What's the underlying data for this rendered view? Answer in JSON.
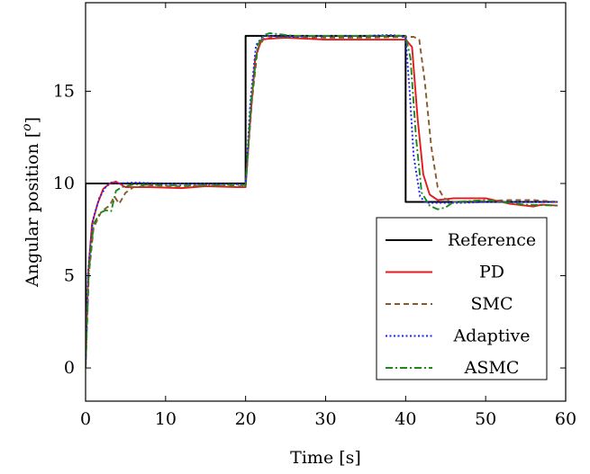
{
  "chart_data": {
    "type": "line",
    "title": "",
    "xlabel": "Time [s]",
    "ylabel": "Angular position [°]",
    "ylabel_main": "Angular position [",
    "ylabel_unit": "o",
    "ylabel_close": "]",
    "xlim": [
      0,
      60
    ],
    "ylim": [
      -1.8,
      19.8
    ],
    "xticks": [
      "0",
      "10",
      "20",
      "30",
      "40",
      "50",
      "60"
    ],
    "yticks": [
      "0",
      "5",
      "10",
      "15"
    ],
    "grid": false,
    "legend_position": "bottom-right",
    "series": [
      {
        "name": "Reference",
        "color": "#000000",
        "dash": "solid",
        "x": [
          0,
          0,
          20,
          20,
          40,
          40,
          59
        ],
        "y": [
          0,
          10,
          10,
          18,
          18,
          9,
          9
        ]
      },
      {
        "name": "PD",
        "color": "#e41a1c",
        "dash": "solid",
        "x": [
          0,
          0.3,
          0.8,
          1.5,
          2.2,
          3,
          3.8,
          5,
          8,
          12,
          15,
          19,
          20,
          20.5,
          21.2,
          22,
          23,
          25,
          30,
          35,
          40,
          40.8,
          41.5,
          42.2,
          43,
          44,
          46,
          50,
          53,
          56,
          57,
          59
        ],
        "y": [
          0,
          5,
          7.8,
          8.9,
          9.7,
          10,
          10.1,
          9.8,
          9.8,
          9.75,
          9.85,
          9.8,
          9.8,
          13,
          16.8,
          17.8,
          17.85,
          17.9,
          17.8,
          17.8,
          17.8,
          17.4,
          13.5,
          10.5,
          9.4,
          9.1,
          9.2,
          9.2,
          8.9,
          8.75,
          8.85,
          8.8
        ]
      },
      {
        "name": "SMC",
        "color": "#8b5a2b",
        "dash": "6,4",
        "x": [
          0,
          0.4,
          1,
          2,
          3,
          3.6,
          4.2,
          5,
          6,
          8,
          12,
          15,
          19,
          20,
          20.8,
          21.5,
          22.5,
          23.5,
          26,
          30,
          35,
          41,
          41.7,
          42.4,
          43.2,
          44,
          44.8,
          46,
          50,
          53,
          56,
          59
        ],
        "y": [
          0,
          5,
          7.6,
          8.5,
          8.8,
          9.3,
          8.9,
          9.5,
          9.8,
          9.9,
          9.85,
          9.9,
          9.85,
          9.85,
          14.5,
          17.3,
          18,
          17.9,
          17.95,
          17.9,
          17.9,
          17.95,
          17.8,
          15.5,
          12,
          9.8,
          9.2,
          9.0,
          9.05,
          9.1,
          9.1,
          9.0
        ]
      },
      {
        "name": "Adaptive",
        "color": "#1f1fff",
        "dash": "2,2.5",
        "x": [
          0,
          0.3,
          0.9,
          1.7,
          2.5,
          3.2,
          4,
          6,
          10,
          15,
          20,
          20.6,
          21.3,
          22.2,
          23,
          26,
          30,
          35,
          38,
          39.5,
          40,
          40.5,
          41,
          41.8,
          42.5,
          44,
          47,
          50,
          55,
          59
        ],
        "y": [
          0,
          5.2,
          8,
          9.2,
          9.8,
          10.05,
          10.0,
          10.05,
          10.0,
          10.0,
          9.95,
          14.5,
          17.5,
          18,
          18,
          17.95,
          18,
          18,
          18.05,
          18,
          17.9,
          15,
          11.5,
          9.3,
          8.95,
          8.95,
          8.95,
          9.0,
          9.0,
          9.0
        ]
      },
      {
        "name": "ASMC",
        "color": "#1a8a1a",
        "dash": "8,3,2,3",
        "x": [
          0,
          0.4,
          1,
          1.8,
          2.5,
          3.2,
          3.8,
          4.5,
          6,
          10,
          15,
          19.5,
          20,
          20.7,
          21.5,
          22.3,
          23,
          26,
          30,
          35,
          40,
          40.6,
          41.3,
          42,
          43,
          44,
          45,
          46,
          50,
          55,
          59
        ],
        "y": [
          0,
          5.2,
          7.8,
          8.4,
          8.55,
          8.5,
          9.6,
          9.8,
          9.95,
          9.9,
          9.9,
          9.95,
          9.9,
          14.5,
          17.5,
          18.05,
          18.15,
          18,
          18,
          18,
          18,
          16.8,
          12.5,
          9.5,
          8.8,
          8.6,
          8.7,
          9.0,
          9.1,
          8.85,
          8.8
        ]
      }
    ]
  }
}
